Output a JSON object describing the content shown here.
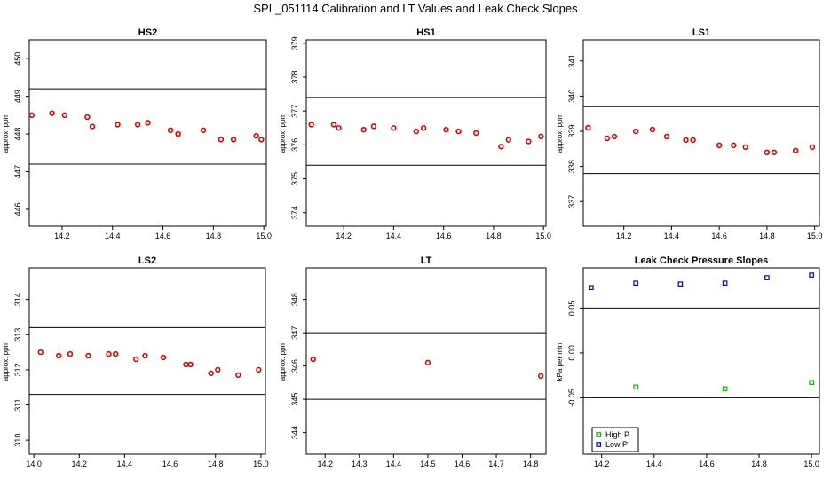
{
  "figure": {
    "title": "SPL_051114  Calibration and LT Values and Leak Check Slopes"
  },
  "colors": {
    "calibration": "#dd0000",
    "high_p": "#00bb00",
    "low_p": "#0000cc",
    "axis": "#000000"
  },
  "chart_data": [
    {
      "type": "scatter",
      "title": "HS2",
      "xlabel": "",
      "ylabel": "approx. ppm",
      "xlim": [
        14.07,
        15.01
      ],
      "ylim": [
        445.55,
        450.5
      ],
      "xticks": [
        14.2,
        14.4,
        14.6,
        14.8,
        15.0
      ],
      "xtick_labels": [
        "14.2",
        "14.4",
        "14.6",
        "14.8",
        "15.0"
      ],
      "yticks": [
        446,
        447,
        448,
        449,
        450
      ],
      "ytick_labels": [
        "446",
        "447",
        "448",
        "449",
        "450"
      ],
      "hlines": [
        449.2,
        447.2
      ],
      "series": [
        {
          "color": "#dd0000",
          "marker": "circle",
          "x": [
            14.08,
            14.16,
            14.21,
            14.3,
            14.32,
            14.42,
            14.5,
            14.54,
            14.63,
            14.66,
            14.76,
            14.83,
            14.88,
            14.97,
            14.99
          ],
          "y": [
            448.5,
            448.55,
            448.5,
            448.45,
            448.2,
            448.25,
            448.25,
            448.3,
            448.1,
            448.0,
            448.1,
            447.85,
            447.85,
            447.95,
            447.85
          ]
        }
      ]
    },
    {
      "type": "scatter",
      "title": "HS1",
      "xlabel": "",
      "ylabel": "approx. ppm",
      "xlim": [
        14.05,
        15.01
      ],
      "ylim": [
        373.6,
        379.1
      ],
      "xticks": [
        14.2,
        14.4,
        14.6,
        14.8,
        15.0
      ],
      "xtick_labels": [
        "14.2",
        "14.4",
        "14.6",
        "14.8",
        "15.0"
      ],
      "yticks": [
        374,
        375,
        376,
        377,
        378,
        379
      ],
      "ytick_labels": [
        "374",
        "375",
        "376",
        "377",
        "378",
        "379"
      ],
      "hlines": [
        377.4,
        375.4
      ],
      "series": [
        {
          "color": "#dd0000",
          "marker": "circle",
          "x": [
            14.07,
            14.16,
            14.18,
            14.28,
            14.32,
            14.4,
            14.49,
            14.52,
            14.61,
            14.66,
            14.73,
            14.83,
            14.86,
            14.94,
            14.99
          ],
          "y": [
            376.6,
            376.6,
            376.5,
            376.45,
            376.55,
            376.5,
            376.4,
            376.5,
            376.45,
            376.4,
            376.35,
            375.95,
            376.15,
            376.1,
            376.25
          ]
        }
      ]
    },
    {
      "type": "scatter",
      "title": "LS1",
      "xlabel": "",
      "ylabel": "approx. ppm",
      "xlim": [
        14.03,
        15.02
      ],
      "ylim": [
        336.3,
        341.6
      ],
      "xticks": [
        14.2,
        14.4,
        14.6,
        14.8,
        15.0
      ],
      "xtick_labels": [
        "14.2",
        "14.4",
        "14.6",
        "14.8",
        "15.0"
      ],
      "yticks": [
        337,
        338,
        339,
        340,
        341
      ],
      "ytick_labels": [
        "337",
        "338",
        "339",
        "340",
        "341"
      ],
      "hlines": [
        339.7,
        337.8
      ],
      "series": [
        {
          "color": "#dd0000",
          "marker": "circle",
          "x": [
            14.05,
            14.13,
            14.16,
            14.25,
            14.32,
            14.38,
            14.46,
            14.49,
            14.6,
            14.66,
            14.71,
            14.8,
            14.83,
            14.92,
            14.99
          ],
          "y": [
            339.1,
            338.8,
            338.85,
            339.0,
            339.05,
            338.85,
            338.75,
            338.75,
            338.6,
            338.6,
            338.55,
            338.4,
            338.4,
            338.45,
            338.55
          ]
        }
      ]
    },
    {
      "type": "scatter",
      "title": "LS2",
      "xlabel": "",
      "ylabel": "approx. ppm",
      "xlim": [
        13.98,
        15.02
      ],
      "ylim": [
        309.6,
        314.9
      ],
      "xticks": [
        14.0,
        14.2,
        14.4,
        14.6,
        14.8,
        15.0
      ],
      "xtick_labels": [
        "14.0",
        "14.2",
        "14.4",
        "14.6",
        "14.8",
        "15.0"
      ],
      "yticks": [
        310,
        311,
        312,
        313,
        314
      ],
      "ytick_labels": [
        "310",
        "311",
        "312",
        "313",
        "314"
      ],
      "hlines": [
        313.2,
        311.3
      ],
      "series": [
        {
          "color": "#dd0000",
          "marker": "circle",
          "x": [
            14.03,
            14.11,
            14.16,
            14.24,
            14.33,
            14.36,
            14.45,
            14.49,
            14.57,
            14.67,
            14.69,
            14.78,
            14.81,
            14.9,
            14.99
          ],
          "y": [
            312.5,
            312.4,
            312.45,
            312.4,
            312.45,
            312.45,
            312.3,
            312.4,
            312.35,
            312.15,
            312.15,
            311.9,
            312.0,
            311.85,
            312.0
          ]
        }
      ]
    },
    {
      "type": "scatter",
      "title": "LT",
      "xlabel": "",
      "ylabel": "approx. ppm",
      "xlim": [
        14.145,
        14.845
      ],
      "ylim": [
        343.35,
        348.95
      ],
      "xticks": [
        14.2,
        14.3,
        14.4,
        14.5,
        14.6,
        14.7,
        14.8
      ],
      "xtick_labels": [
        "14.2",
        "14.3",
        "14.4",
        "14.5",
        "14.6",
        "14.7",
        "14.8"
      ],
      "yticks": [
        344,
        345,
        346,
        347,
        348
      ],
      "ytick_labels": [
        "344",
        "345",
        "346",
        "347",
        "348"
      ],
      "hlines": [
        347.0,
        345.0
      ],
      "series": [
        {
          "color": "#dd0000",
          "marker": "circle",
          "x": [
            14.165,
            14.5,
            14.83
          ],
          "y": [
            346.2,
            346.1,
            345.7
          ]
        }
      ]
    },
    {
      "type": "scatter",
      "title": "Leak Check Pressure Slopes",
      "xlabel": "",
      "ylabel": "kPa per min.",
      "xlim": [
        14.13,
        15.03
      ],
      "ylim": [
        -0.113,
        0.095
      ],
      "xticks": [
        14.2,
        14.4,
        14.6,
        14.8,
        15.0
      ],
      "xtick_labels": [
        "14.2",
        "14.4",
        "14.6",
        "14.8",
        "15.0"
      ],
      "yticks": [
        -0.05,
        0.0,
        0.05
      ],
      "ytick_labels": [
        "-0.05",
        "0.00",
        "0.05"
      ],
      "hlines": [
        0.05,
        -0.05
      ],
      "legend": "bottom-left",
      "series": [
        {
          "name": "High P",
          "color": "#00bb00",
          "marker": "square",
          "x": [
            14.33,
            14.67,
            15.0
          ],
          "y": [
            -0.038,
            -0.04,
            -0.033
          ]
        },
        {
          "name": "Low P",
          "color": "#0000cc",
          "marker": "square",
          "x": [
            14.16,
            14.33,
            14.5,
            14.67,
            14.83,
            15.0
          ],
          "y": [
            0.073,
            0.078,
            0.077,
            0.078,
            0.084,
            0.087
          ]
        }
      ]
    }
  ]
}
